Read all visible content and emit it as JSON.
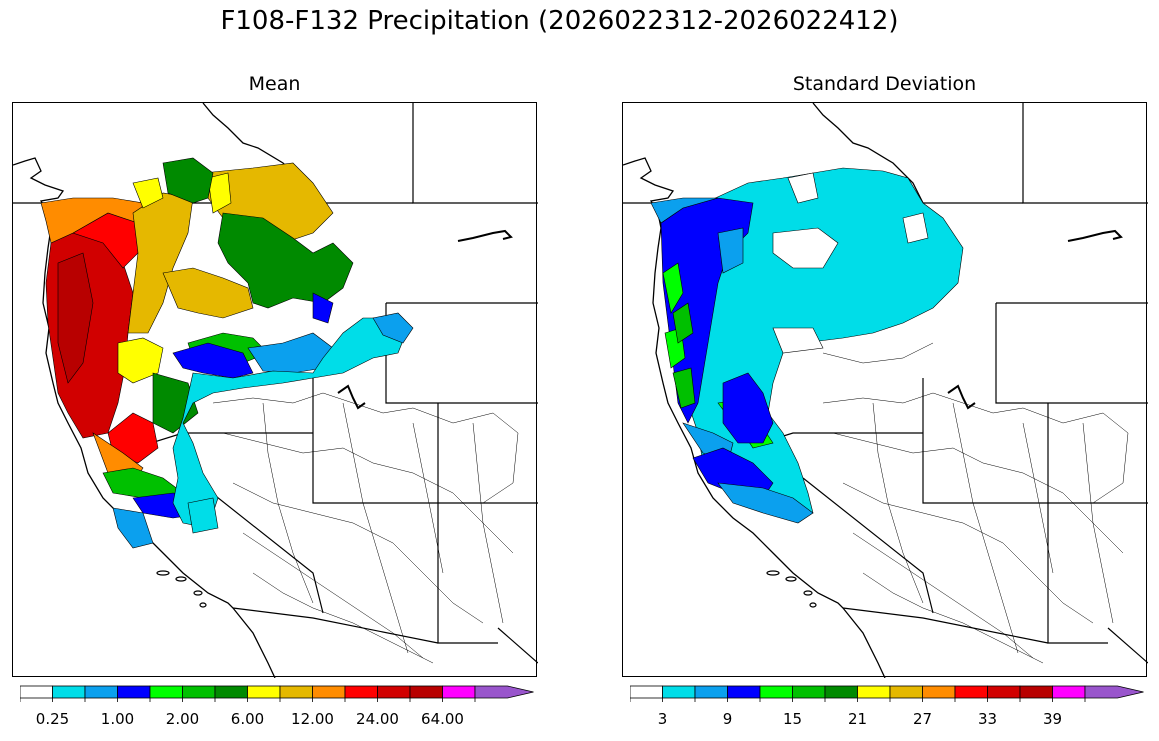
{
  "figure": {
    "title": "F108-F132 Precipitation (2026022312-2026022412)"
  },
  "panels": [
    {
      "subtitle": "Mean",
      "colorbar": {
        "colors": [
          "#ffffff",
          "#00dde8",
          "#0ba0ee",
          "#0000ff",
          "#00ff00",
          "#00c000",
          "#008a00",
          "#ffff00",
          "#e5b800",
          "#ff8c00",
          "#ff0000",
          "#d10000",
          "#b80000",
          "#ff00ff",
          "#9955cc"
        ],
        "tick_labels": [
          "0.25",
          "1.00",
          "2.00",
          "6.00",
          "12.00",
          "24.00",
          "64.00"
        ]
      }
    },
    {
      "subtitle": "Standard Deviation",
      "colorbar": {
        "colors": [
          "#ffffff",
          "#00dde8",
          "#0ba0ee",
          "#0000ff",
          "#00ff00",
          "#00c000",
          "#008a00",
          "#ffff00",
          "#e5b800",
          "#ff8c00",
          "#ff0000",
          "#d10000",
          "#b80000",
          "#ff00ff",
          "#9955cc"
        ],
        "tick_labels": [
          "3",
          "9",
          "15",
          "21",
          "27",
          "33",
          "39"
        ]
      }
    }
  ]
}
